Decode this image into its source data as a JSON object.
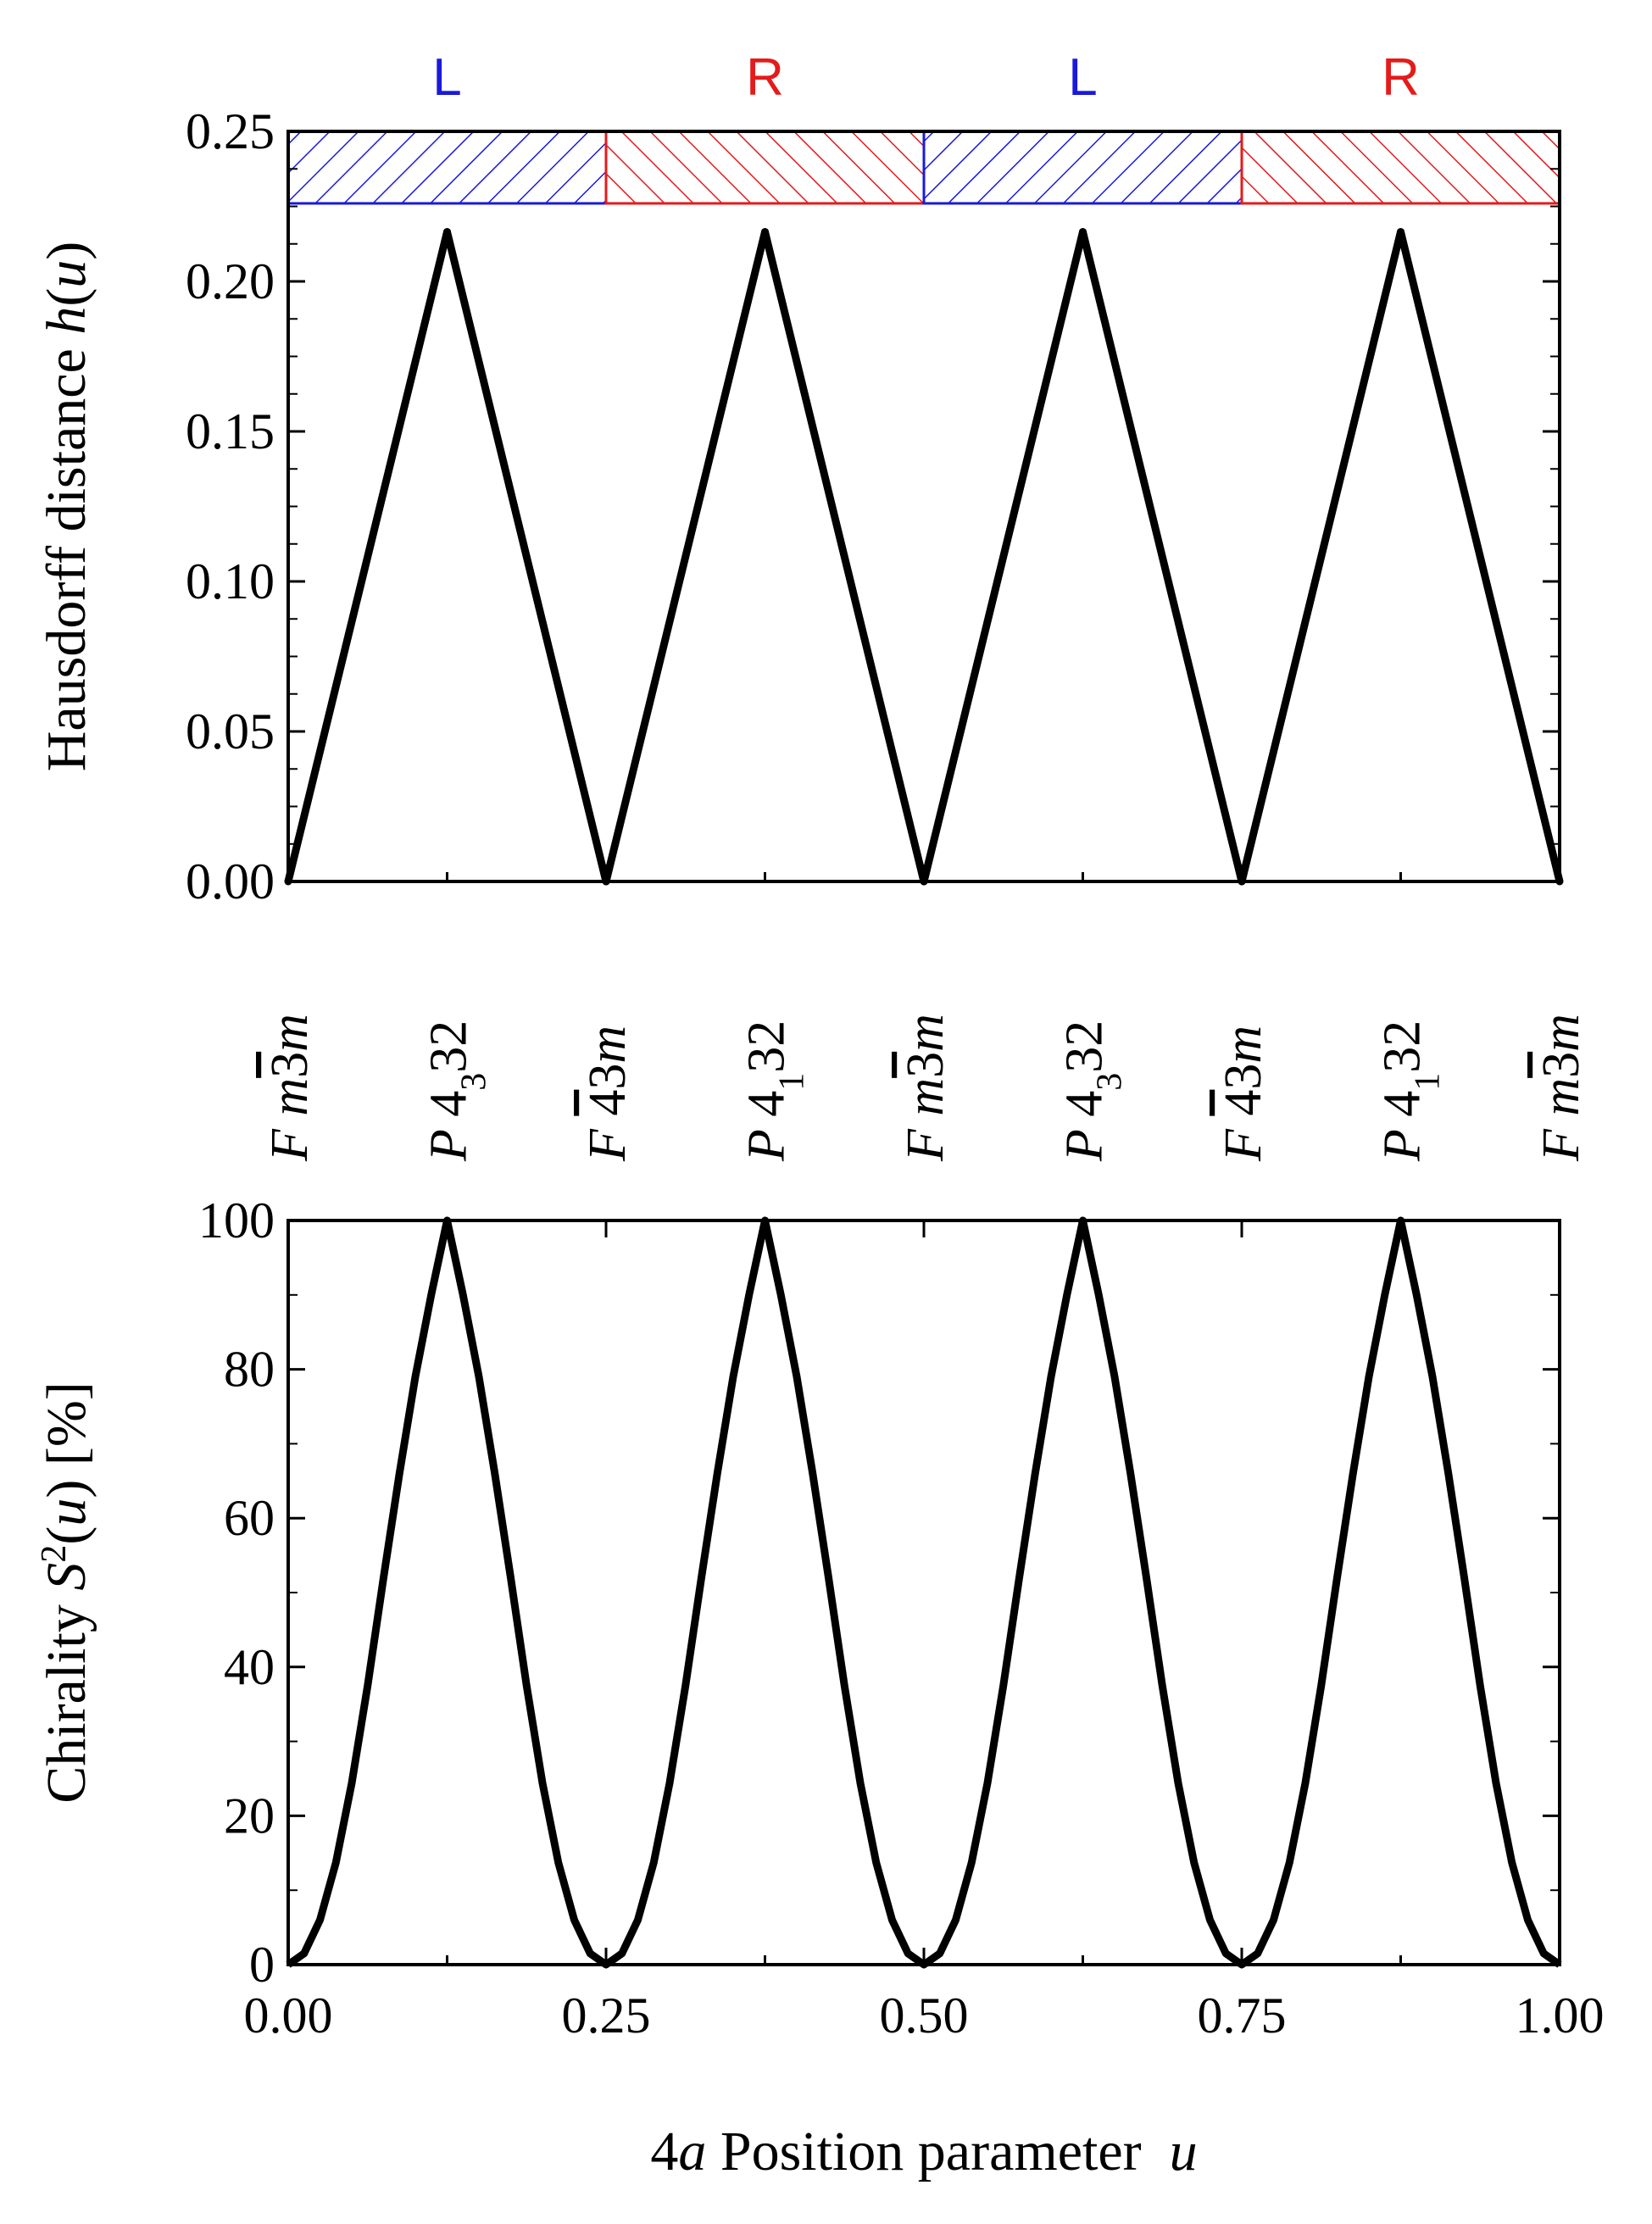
{
  "chart_data": [
    {
      "type": "line",
      "xlim": [
        0,
        1
      ],
      "ylim": [
        0,
        0.25
      ],
      "ylabel": "Hausdorff distance h(u)",
      "ylabel_main": "Hausdorff distance ",
      "ylabel_var": "h",
      "ylabel_args": "(u)",
      "yticks": [
        "0.00",
        "0.05",
        "0.10",
        "0.15",
        "0.20",
        "0.25"
      ],
      "grid": false,
      "series": [
        {
          "x": [
            0,
            0.125,
            0.25,
            0.375,
            0.5,
            0.625,
            0.75,
            0.875,
            1.0
          ],
          "y": [
            0,
            0.2165,
            0,
            0.2165,
            0,
            0.2165,
            0,
            0.2165,
            0
          ]
        }
      ],
      "handedness_bands": [
        {
          "label": "L",
          "x0": 0,
          "x1": 0.25,
          "ylo": 0.226,
          "yhi": 0.25,
          "color": "#1a1adc"
        },
        {
          "label": "R",
          "x0": 0.25,
          "x1": 0.5,
          "ylo": 0.226,
          "yhi": 0.25,
          "color": "#e41b1b"
        },
        {
          "label": "L",
          "x0": 0.5,
          "x1": 0.75,
          "ylo": 0.226,
          "yhi": 0.25,
          "color": "#1a1adc"
        },
        {
          "label": "R",
          "x0": 0.75,
          "x1": 1.0,
          "ylo": 0.226,
          "yhi": 0.25,
          "color": "#e41b1b"
        }
      ]
    },
    {
      "type": "line",
      "xlim": [
        0,
        1
      ],
      "ylim": [
        0,
        100
      ],
      "xlabel": "4a Position parameter u",
      "ylabel": "Chirality S2(u) [%]",
      "ylabel_main": "Chirality ",
      "ylabel_var": "S",
      "ylabel_sup": "2",
      "ylabel_args": "(u) [%]",
      "yticks": [
        "0",
        "20",
        "40",
        "60",
        "80",
        "100"
      ],
      "xticks": [
        "0.00",
        "0.25",
        "0.50",
        "0.75",
        "1.00"
      ],
      "grid": false,
      "series": [
        {
          "x": [
            0,
            0.0125,
            0.025,
            0.0375,
            0.05,
            0.0625,
            0.075,
            0.0875,
            0.1,
            0.1125,
            0.125
          ],
          "y": [
            0,
            1.5,
            6,
            13.7,
            24.4,
            37.5,
            52,
            66,
            79,
            90,
            100
          ],
          "periodic": true,
          "period": 0.25,
          "symmetric": true
        }
      ]
    }
  ],
  "space_groups": [
    {
      "x": 0,
      "prefix": "F ",
      "italic_prefix": "F",
      "body": "m3m",
      "bar_on": "3",
      "sub": ""
    },
    {
      "x": 0.125,
      "italic_prefix": "P",
      "body": "4",
      "sub": "3",
      "tail": "32"
    },
    {
      "x": 0.25,
      "italic_prefix": "F",
      "body": "43m",
      "bar_on": "4"
    },
    {
      "x": 0.375,
      "italic_prefix": "P",
      "body": "4",
      "sub": "1",
      "tail": "32"
    },
    {
      "x": 0.5,
      "italic_prefix": "F",
      "body": "m3m",
      "bar_on": "3"
    },
    {
      "x": 0.625,
      "italic_prefix": "P",
      "body": "4",
      "sub": "3",
      "tail": "32"
    },
    {
      "x": 0.75,
      "italic_prefix": "F",
      "body": "43m",
      "bar_on": "4"
    },
    {
      "x": 0.875,
      "italic_prefix": "P",
      "body": "4",
      "sub": "1",
      "tail": "32"
    },
    {
      "x": 1.0,
      "italic_prefix": "F",
      "body": "m3m",
      "bar_on": "3"
    }
  ],
  "xlabel_parts": {
    "pre": "4",
    "var_a": "a",
    "mid": " Position parameter  ",
    "var_u": "u"
  },
  "colors": {
    "L": "#1a1adc",
    "R": "#e41b1b",
    "line": "#000000"
  }
}
